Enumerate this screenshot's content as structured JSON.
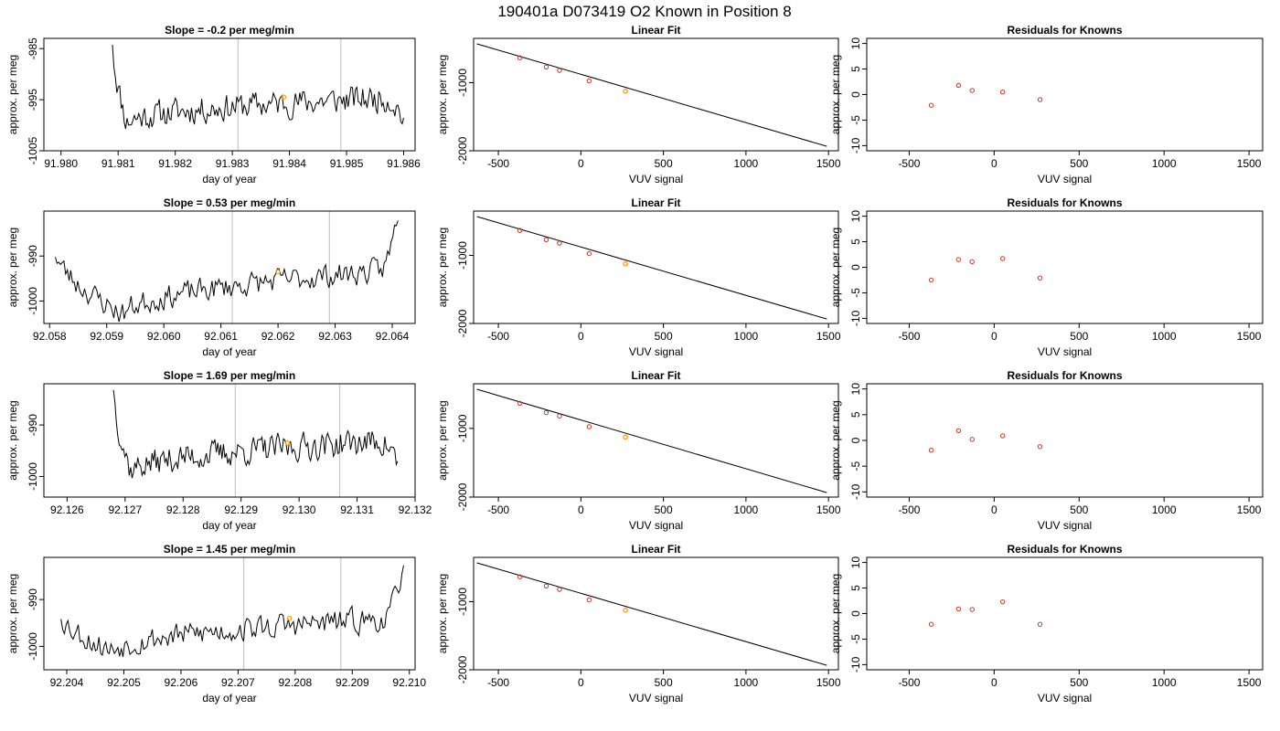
{
  "figure": {
    "title": "190401a      D073419   O2 Known in Position  8"
  },
  "chart_data": [
    {
      "type": "line",
      "kind": "timeseries",
      "title": "Slope =  -0.2  per meg/min",
      "xlabel": "day of year",
      "ylabel": "approx. per meg",
      "xlim": [
        91.9797,
        91.9862
      ],
      "ylim": [
        -1005,
        -983
      ],
      "xticks": [
        91.98,
        91.981,
        91.982,
        91.983,
        91.984,
        91.985,
        91.986
      ],
      "xtick_labels": [
        "91.980",
        "91.981",
        "91.982",
        "91.983",
        "91.984",
        "91.985",
        "91.986"
      ],
      "yticks": [
        -985,
        -995,
        -1005
      ],
      "ytick_labels": [
        "-985",
        "-995",
        "-1005"
      ],
      "vlines": [
        91.9831,
        91.9849
      ],
      "series_params": {
        "x0": 91.9809,
        "x1": 91.986,
        "start": -983,
        "drop_end": 91.98115,
        "base": -999.5,
        "trend": 5,
        "end": -999,
        "seed": 11
      },
      "highlight": {
        "x": 91.9839,
        "y": -994.5,
        "color": "#ff9f00"
      }
    },
    {
      "type": "line",
      "kind": "fit",
      "title": "Linear Fit",
      "xlabel": "VUV signal",
      "ylabel": "approx. per meg",
      "xlim": [
        -650,
        1560
      ],
      "ylim": [
        -2000,
        -350
      ],
      "xticks": [
        -500,
        0,
        500,
        1000,
        1500
      ],
      "xtick_labels": [
        "-500",
        "0",
        "500",
        "1000",
        "1500"
      ],
      "yticks": [
        -1000,
        -2000
      ],
      "ytick_labels": [
        "-1000",
        "-2000"
      ],
      "line": {
        "x": [
          -630,
          1490
        ],
        "y": [
          -430,
          -1935
        ]
      },
      "points": {
        "x": [
          -370,
          -210,
          -130,
          50,
          270
        ],
        "y": [
          -635,
          -770,
          -820,
          -975,
          -1125
        ]
      },
      "highlight": {
        "x": 270,
        "y": -1125,
        "color": "#ff9f00"
      }
    },
    {
      "type": "scatter",
      "kind": "residuals",
      "title": "Residuals for Knowns",
      "xlabel": "VUV signal",
      "ylabel": "approx. per meg",
      "xlim": [
        -750,
        1580
      ],
      "ylim": [
        -11,
        11
      ],
      "xticks": [
        -500,
        0,
        500,
        1000,
        1500
      ],
      "xtick_labels": [
        "-500",
        "0",
        "500",
        "1000",
        "1500"
      ],
      "yticks": [
        10,
        5,
        0,
        -5,
        -10
      ],
      "ytick_labels": [
        "10",
        "5",
        "0",
        "-5",
        "-10"
      ],
      "points": {
        "x": [
          -370,
          -210,
          -130,
          50,
          270
        ],
        "y": [
          -2.1,
          1.8,
          0.8,
          0.5,
          -1.0
        ]
      }
    },
    {
      "type": "line",
      "kind": "timeseries",
      "title": "Slope =  0.53  per meg/min",
      "xlabel": "day of year",
      "ylabel": "approx. per meg",
      "xlim": [
        92.0579,
        92.0644
      ],
      "ylim": [
        -1005,
        -980
      ],
      "xticks": [
        92.058,
        92.059,
        92.06,
        92.061,
        92.062,
        92.063,
        92.064
      ],
      "xtick_labels": [
        "92.058",
        "92.059",
        "92.060",
        "92.061",
        "92.062",
        "92.063",
        "92.064"
      ],
      "yticks": [
        -990,
        -1000
      ],
      "ytick_labels": [
        "-990",
        "-1000"
      ],
      "vlines": [
        92.0612,
        92.0629
      ],
      "series_params": {
        "x0": 92.0581,
        "x1": 92.0641,
        "start": -989,
        "drop_end": 92.0593,
        "base": -1003,
        "trend": 10,
        "end": -980,
        "seed": 23
      },
      "highlight": {
        "x": 92.062,
        "y": -993.5,
        "color": "#ff9f00"
      }
    },
    {
      "type": "line",
      "kind": "fit",
      "title": "Linear Fit",
      "xlabel": "VUV signal",
      "ylabel": "approx. per meg",
      "xlim": [
        -650,
        1560
      ],
      "ylim": [
        -2000,
        -350
      ],
      "xticks": [
        -500,
        0,
        500,
        1000,
        1500
      ],
      "xtick_labels": [
        "-500",
        "0",
        "500",
        "1000",
        "1500"
      ],
      "yticks": [
        -1000,
        -2000
      ],
      "ytick_labels": [
        "-1000",
        "-2000"
      ],
      "line": {
        "x": [
          -630,
          1490
        ],
        "y": [
          -430,
          -1935
        ]
      },
      "points": {
        "x": [
          -370,
          -210,
          -130,
          50,
          270
        ],
        "y": [
          -635,
          -770,
          -820,
          -975,
          -1125
        ]
      },
      "highlight": {
        "x": 270,
        "y": -1125,
        "color": "#ff9f00"
      }
    },
    {
      "type": "scatter",
      "kind": "residuals",
      "title": "Residuals for Knowns",
      "xlabel": "VUV signal",
      "ylabel": "approx. per meg",
      "xlim": [
        -750,
        1580
      ],
      "ylim": [
        -11,
        11
      ],
      "xticks": [
        -500,
        0,
        500,
        1000,
        1500
      ],
      "xtick_labels": [
        "-500",
        "0",
        "500",
        "1000",
        "1500"
      ],
      "yticks": [
        10,
        5,
        0,
        -5,
        -10
      ],
      "ytick_labels": [
        "10",
        "5",
        "0",
        "-5",
        "-10"
      ],
      "points": {
        "x": [
          -370,
          -210,
          -130,
          50,
          270
        ],
        "y": [
          -2.5,
          1.5,
          1.1,
          1.7,
          -2.1
        ]
      }
    },
    {
      "type": "line",
      "kind": "timeseries",
      "title": "Slope =  1.69  per meg/min",
      "xlabel": "day of year",
      "ylabel": "approx. per meg",
      "xlim": [
        92.1256,
        92.132
      ],
      "ylim": [
        -1004,
        -982
      ],
      "xticks": [
        92.126,
        92.127,
        92.128,
        92.129,
        92.13,
        92.131,
        92.132
      ],
      "xtick_labels": [
        "92.126",
        "92.127",
        "92.128",
        "92.129",
        "92.130",
        "92.131",
        "92.132"
      ],
      "yticks": [
        -990,
        -1000
      ],
      "ytick_labels": [
        "-990",
        "-1000"
      ],
      "vlines": [
        92.1289,
        92.1307
      ],
      "series_params": {
        "x0": 92.1268,
        "x1": 92.1317,
        "start": -982,
        "drop_end": 92.1271,
        "base": -999,
        "trend": 6,
        "end": -997.5,
        "seed": 37
      },
      "highlight": {
        "x": 92.1298,
        "y": -993.5,
        "color": "#ff9f00"
      }
    },
    {
      "type": "line",
      "kind": "fit",
      "title": "Linear Fit",
      "xlabel": "VUV signal",
      "ylabel": "approx. per meg",
      "xlim": [
        -650,
        1560
      ],
      "ylim": [
        -2000,
        -350
      ],
      "xticks": [
        -500,
        0,
        500,
        1000,
        1500
      ],
      "xtick_labels": [
        "-500",
        "0",
        "500",
        "1000",
        "1500"
      ],
      "yticks": [
        -1000,
        -2000
      ],
      "ytick_labels": [
        "-1000",
        "-2000"
      ],
      "line": {
        "x": [
          -630,
          1490
        ],
        "y": [
          -430,
          -1935
        ]
      },
      "points": {
        "x": [
          -370,
          -210,
          -130,
          50,
          270
        ],
        "y": [
          -635,
          -770,
          -820,
          -975,
          -1125
        ]
      },
      "highlight": {
        "x": 270,
        "y": -1125,
        "color": "#ff9f00"
      }
    },
    {
      "type": "scatter",
      "kind": "residuals",
      "title": "Residuals for Knowns",
      "xlabel": "VUV signal",
      "ylabel": "approx. per meg",
      "xlim": [
        -750,
        1580
      ],
      "ylim": [
        -11,
        11
      ],
      "xticks": [
        -500,
        0,
        500,
        1000,
        1500
      ],
      "xtick_labels": [
        "-500",
        "0",
        "500",
        "1000",
        "1500"
      ],
      "yticks": [
        10,
        5,
        0,
        -5,
        -10
      ],
      "ytick_labels": [
        "10",
        "5",
        "0",
        "-5",
        "-10"
      ],
      "points": {
        "x": [
          -370,
          -210,
          -130,
          50,
          270
        ],
        "y": [
          -1.9,
          1.9,
          0.2,
          0.9,
          -1.2
        ]
      }
    },
    {
      "type": "line",
      "kind": "timeseries",
      "title": "Slope =  1.45  per meg/min",
      "xlabel": "day of year",
      "ylabel": "approx. per meg",
      "xlim": [
        92.2036,
        92.2101
      ],
      "ylim": [
        -1005,
        -981
      ],
      "xticks": [
        92.204,
        92.205,
        92.206,
        92.207,
        92.208,
        92.209,
        92.21
      ],
      "xtick_labels": [
        "92.204",
        "92.205",
        "92.206",
        "92.207",
        "92.208",
        "92.209",
        "92.210"
      ],
      "yticks": [
        -990,
        -1000
      ],
      "ytick_labels": [
        "-990",
        "-1000"
      ],
      "vlines": [
        92.2071,
        92.2088
      ],
      "series_params": {
        "x0": 92.2039,
        "x1": 92.2099,
        "start": -993,
        "drop_end": 92.2048,
        "base": -1001,
        "trend": 7,
        "end": -981,
        "seed": 53
      },
      "highlight": {
        "x": 92.2079,
        "y": -994,
        "color": "#ff9f00"
      }
    },
    {
      "type": "line",
      "kind": "fit",
      "title": "Linear Fit",
      "xlabel": "VUV signal",
      "ylabel": "approx. per meg",
      "xlim": [
        -650,
        1560
      ],
      "ylim": [
        -2000,
        -350
      ],
      "xticks": [
        -500,
        0,
        500,
        1000,
        1500
      ],
      "xtick_labels": [
        "-500",
        "0",
        "500",
        "1000",
        "1500"
      ],
      "yticks": [
        -1000,
        -2000
      ],
      "ytick_labels": [
        "-1000",
        "-2000"
      ],
      "line": {
        "x": [
          -630,
          1490
        ],
        "y": [
          -430,
          -1935
        ]
      },
      "points": {
        "x": [
          -370,
          -210,
          -130,
          50,
          270
        ],
        "y": [
          -635,
          -770,
          -820,
          -975,
          -1125
        ]
      },
      "highlight": {
        "x": 270,
        "y": -1125,
        "color": "#ff9f00"
      }
    },
    {
      "type": "scatter",
      "kind": "residuals",
      "title": "Residuals for Knowns",
      "xlabel": "VUV signal",
      "ylabel": "approx. per meg",
      "xlim": [
        -750,
        1580
      ],
      "ylim": [
        -11,
        11
      ],
      "xticks": [
        -500,
        0,
        500,
        1000,
        1500
      ],
      "xtick_labels": [
        "-500",
        "0",
        "500",
        "1000",
        "1500"
      ],
      "yticks": [
        10,
        5,
        0,
        -5,
        -10
      ],
      "ytick_labels": [
        "10",
        "5",
        "0",
        "-5",
        "-10"
      ],
      "points": {
        "x": [
          -370,
          -210,
          -130,
          50,
          270
        ],
        "y": [
          -2.1,
          0.9,
          0.8,
          2.3,
          -2.1
        ]
      }
    }
  ],
  "colors": {
    "line": "#000000",
    "point": "#c0392b",
    "highlight": "#ff9f00",
    "vline": "#c8c8c8"
  }
}
